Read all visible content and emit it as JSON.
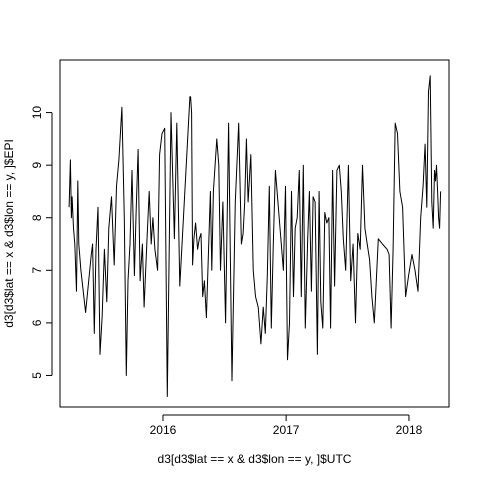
{
  "chart_data": {
    "type": "line",
    "xlabel": "d3[d3$lat == x & d3$lon == y, ]$UTC",
    "ylabel": "d3[d3$lat == x & d3$lon == y, ]$EPI",
    "x_ticks": [
      {
        "label": "2016",
        "value": "2016-01-01"
      },
      {
        "label": "2017",
        "value": "2017-01-01"
      },
      {
        "label": "2018",
        "value": "2018-01-01"
      }
    ],
    "y_ticks": [
      5,
      6,
      7,
      8,
      9,
      10
    ],
    "xlim": [
      "2015-03-01",
      "2018-04-30"
    ],
    "ylim": [
      4.4,
      11.0
    ],
    "line_color": "#000000",
    "series": [
      {
        "x": [
          "2015-03-28",
          "2015-04-01",
          "2015-04-04",
          "2015-04-06",
          "2015-04-10",
          "2015-04-14",
          "2015-04-19",
          "2015-04-23",
          "2015-04-26",
          "2015-05-02",
          "2015-05-16",
          "2015-06-02",
          "2015-06-06",
          "2015-06-11",
          "2015-06-16",
          "2015-06-22",
          "2015-06-28",
          "2015-07-04",
          "2015-07-11",
          "2015-07-18",
          "2015-07-24",
          "2015-08-01",
          "2015-08-09",
          "2015-08-16",
          "2015-08-23",
          "2015-09-01",
          "2015-09-08",
          "2015-09-14",
          "2015-09-19",
          "2015-09-25",
          "2015-10-01",
          "2015-10-08",
          "2015-10-13",
          "2015-10-19",
          "2015-10-25",
          "2015-11-01",
          "2015-11-06",
          "2015-11-14",
          "2015-11-21",
          "2015-11-27",
          "2015-12-02",
          "2015-12-08",
          "2015-12-16",
          "2015-12-22",
          "2015-12-29",
          "2016-01-06",
          "2016-01-14",
          "2016-01-25",
          "2016-02-04",
          "2016-02-11",
          "2016-02-20",
          "2016-03-21",
          "2016-03-23",
          "2016-03-26",
          "2016-03-29",
          "2016-04-02",
          "2016-04-07",
          "2016-04-13",
          "2016-04-18",
          "2016-04-23",
          "2016-04-28",
          "2016-05-03",
          "2016-05-09",
          "2016-05-15",
          "2016-05-21",
          "2016-05-25",
          "2016-05-30",
          "2016-06-09",
          "2016-06-15",
          "2016-06-20",
          "2016-06-27",
          "2016-07-05",
          "2016-07-14",
          "2016-07-24",
          "2016-08-03",
          "2016-08-13",
          "2016-08-21",
          "2016-08-26",
          "2016-08-31",
          "2016-09-05",
          "2016-09-10",
          "2016-09-18",
          "2016-09-25",
          "2016-10-02",
          "2016-10-10",
          "2016-10-18",
          "2016-10-25",
          "2016-10-31",
          "2016-11-06",
          "2016-11-12",
          "2016-11-18",
          "2016-11-24",
          "2016-11-30",
          "2016-12-24",
          "2016-12-30",
          "2017-01-05",
          "2017-01-11",
          "2017-01-17",
          "2017-01-23",
          "2017-01-28",
          "2017-02-03",
          "2017-02-09",
          "2017-02-15",
          "2017-02-21",
          "2017-02-27",
          "2017-03-06",
          "2017-03-11",
          "2017-03-17",
          "2017-03-22",
          "2017-03-28",
          "2017-04-04",
          "2017-04-09",
          "2017-04-14",
          "2017-04-20",
          "2017-04-26",
          "2017-05-02",
          "2017-05-08",
          "2017-05-13",
          "2017-05-19",
          "2017-05-25",
          "2017-06-01",
          "2017-06-08",
          "2017-06-14",
          "2017-06-20",
          "2017-06-27",
          "2017-07-05",
          "2017-07-12",
          "2017-07-19",
          "2017-07-26",
          "2017-08-02",
          "2017-08-09",
          "2017-08-16",
          "2017-08-23",
          "2017-08-30",
          "2017-09-06",
          "2017-09-13",
          "2017-09-20",
          "2017-10-02",
          "2017-10-14",
          "2017-10-28",
          "2017-11-03",
          "2017-11-09",
          "2017-11-15",
          "2017-11-21",
          "2017-11-28",
          "2017-12-05",
          "2017-12-13",
          "2017-12-22",
          "2017-12-31",
          "2018-01-10",
          "2018-01-19",
          "2018-01-28",
          "2018-02-05",
          "2018-02-12",
          "2018-02-18",
          "2018-02-23",
          "2018-02-28",
          "2018-03-05",
          "2018-03-10",
          "2018-03-14",
          "2018-03-18",
          "2018-03-21",
          "2018-03-24",
          "2018-03-27",
          "2018-03-30",
          "2018-04-02",
          "2018-04-05"
        ],
        "y": [
          8.2,
          9.1,
          8.0,
          8.4,
          7.8,
          7.5,
          6.6,
          8.7,
          7.5,
          7.0,
          6.2,
          7.3,
          7.5,
          5.8,
          7.4,
          8.2,
          5.4,
          6.1,
          7.4,
          6.4,
          7.8,
          8.4,
          7.1,
          8.6,
          9.1,
          10.1,
          8.0,
          5.0,
          6.8,
          7.5,
          8.9,
          6.9,
          8.1,
          9.3,
          6.8,
          7.5,
          6.3,
          7.5,
          8.5,
          7.5,
          8.0,
          7.4,
          7.0,
          9.2,
          9.6,
          9.7,
          4.6,
          10.0,
          7.6,
          9.8,
          6.7,
          10.3,
          10.3,
          10.0,
          7.1,
          7.6,
          7.9,
          7.4,
          7.6,
          7.7,
          6.5,
          6.8,
          6.1,
          7.3,
          8.5,
          7.0,
          8.5,
          9.5,
          9.0,
          7.0,
          8.3,
          6.0,
          9.8,
          4.9,
          8.3,
          9.8,
          7.5,
          7.7,
          8.3,
          9.5,
          8.3,
          9.2,
          7.0,
          6.5,
          6.3,
          5.6,
          6.3,
          5.8,
          6.9,
          8.6,
          5.9,
          7.5,
          8.9,
          7.0,
          8.6,
          5.3,
          6.0,
          8.5,
          6.5,
          7.8,
          8.0,
          8.9,
          6.5,
          9.0,
          5.9,
          7.6,
          8.5,
          6.6,
          8.4,
          8.3,
          5.4,
          8.5,
          6.4,
          5.9,
          8.1,
          7.9,
          8.0,
          5.9,
          8.9,
          6.7,
          8.9,
          9.0,
          8.5,
          7.6,
          7.0,
          9.0,
          6.8,
          7.5,
          6.0,
          7.7,
          7.4,
          9.0,
          7.8,
          7.5,
          7.2,
          6.5,
          6.0,
          7.6,
          7.5,
          7.4,
          7.3,
          5.9,
          7.4,
          9.8,
          9.6,
          8.5,
          8.2,
          6.5,
          6.9,
          7.3,
          7.0,
          6.6,
          8.0,
          8.6,
          9.4,
          8.2,
          10.4,
          10.7,
          8.3,
          7.8,
          8.9,
          8.7,
          9.0,
          8.5,
          8.0,
          7.8,
          8.5
        ]
      }
    ]
  }
}
